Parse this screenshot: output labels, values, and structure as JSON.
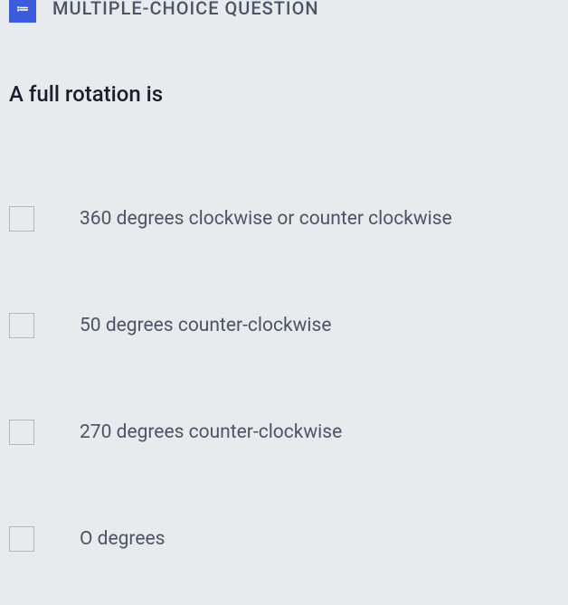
{
  "header": {
    "icon_label": "≔",
    "type_label": "MULTIPLE-CHOICE QUESTION"
  },
  "question": {
    "prompt": "A full rotation is"
  },
  "options": [
    {
      "text": "360 degrees clockwise or counter clockwise"
    },
    {
      "text": "50 degrees counter-clockwise"
    },
    {
      "text": "270 degrees counter-clockwise"
    },
    {
      "text": "O degrees"
    }
  ],
  "colors": {
    "background": "#e8ebee",
    "header_icon_bg": "#3b5bdb",
    "header_text": "#4a5568",
    "question_text": "#1a1f2e",
    "option_text": "#4a5568",
    "checkbox_border": "#b0b8c4"
  }
}
